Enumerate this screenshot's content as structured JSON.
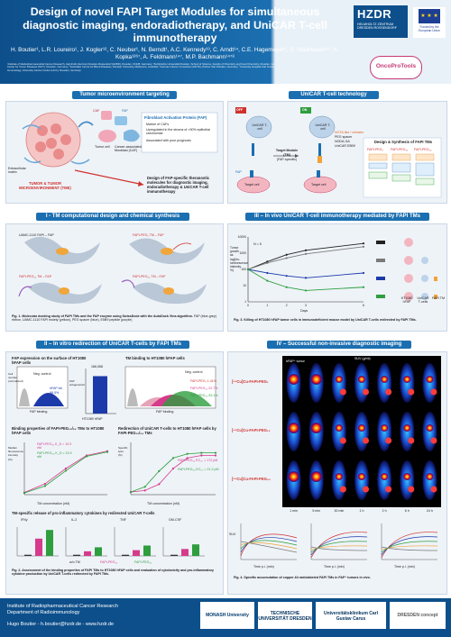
{
  "header": {
    "title": "Design of novel FAPI Target Modules for simultaneous diagnostic imaging, endoradiotherapy, and UniCAR T-cell immunotherapy",
    "authors": "H. Boutier¹, L.R. Loureiro¹, J. Kogler¹², C. Neuber¹, N. Berndt¹, A.C. Kennedy¹³, C. Arndt¹⁴, C.E. Hagemeyer⁵, S. Stadlbauer¹²⁷, K. Kopka¹²⁶⁷, A. Feldmann¹⁴⁷, M.P. Bachmann¹⁴⁷⁸",
    "affiliations": "¹Institute of Radiopharmaceutical Cancer Research, Helmholtz-Zentrum Dresden-Rossendorf (HZDR), Dresden, 01328, Germany; ²Technische Universität Dresden, School of Science, Faculty of Chemistry and Food Chemistry, Dresden, Germany; ³Monash University, Melbourne, Australia; ⁴National Center for Tumor Diseases (NCT), Dresden, Germany; ⁵Australian Centre for Blood Diseases, Monash University, Melbourne, Australia; ⁶German Cancer Consortium (DKTK), Partner Site Dresden, Germany; ⁷University Hospital Carl Gustav Carus, Technische Universität Dresden, Germany; ⁸Tumor Immunology, University Cancer Center (UCC), Dresden, Germany"
  },
  "logos": {
    "hzdr_big": "HZDR",
    "hzdr_small": "HELMHOLTZ ZENTRUM DRESDEN ROSSENDORF",
    "eu_stars": "★ ★ ★",
    "eu_text": "Funded by the European Union",
    "onco": "OncoProTools"
  },
  "sections": {
    "tme": "Tumor microenvironment targeting",
    "unicar": "UniCAR T-cell technology",
    "s1": "I - TM computational design and chemical synthesis",
    "s3": "III – In vivo UniCAR T-cell immunotherapy mediated by FAPI TMs",
    "s2": "II – In vitro redirection of UniCAR T-cells by FAPI TMs",
    "s4": "IV – Successful non-invasive diagnostic imaging"
  },
  "tme_panel": {
    "caf": "CAF",
    "fap": "FAP",
    "tumor_cell": "Tumor cell",
    "caf_full": "Cancer-associated fibroblast (CAF)",
    "stroma": "Extracellular matrix",
    "fap_title": "Fibroblast Activation Protein (FAP)",
    "fap_b1": "Marker of CAFs",
    "fap_b2": "Upregulated in the stroma of >90% epithelial carcinomas",
    "fap_b3": "Associated with poor prognosis",
    "tme_label": "TUMOR & TUMOR MICROENVIRONMENT (TME)",
    "design": "Design of FAP-specific theranostic molecules for diagnostic imaging, endoradiotherapy & UniCAR T-cell immunotherapy"
  },
  "unicar_panel": {
    "off": "OFF",
    "on": "ON",
    "tcell": "UniCAR T-cell",
    "tm": "Target Module (TM)",
    "tm_sub": "(FAP-specific)",
    "target_cell": "Target cell",
    "fap": "FAP",
    "design_title": "Design & Synthesis of FAPI TMs",
    "tm1": "FAPI-PEG₁",
    "tm2": "FAPI-PEG₁₂",
    "tm3": "FAPI-PEG₂₄",
    "legend1": "NOTA-like / chelator",
    "legend2": "PEG spacer",
    "legend3": "NODA-GA",
    "legend4": "UniCAR E5B9"
  },
  "s1_panel": {
    "img1": "UAMC-1110 FAPI – FAP",
    "img2": "FAPI-PEG₁ TM – FAP",
    "img3": "FAPI-PEG₁₂ TM – FAP",
    "img4": "FAPI-PEG₂₄ TM – FAP",
    "caption_bold": "Fig. 1. Molecular docking study of FAPI TMs and the FAP enzyme using SwissDock with the AutoDock Vina algorithm.",
    "caption": "FAP (blue-grey) ribbon, UAMC-1110 FAPI moiety (yellow), PEG spacer (blue), E5B9 peptide (purple)"
  },
  "s3_panel": {
    "n": "N = 5",
    "ylabel": "Tumor growth as log(bio-luminescence intensity %)",
    "xlabel": "Days",
    "legend1": "HT1080 hFAP",
    "legend2": "UniCAR T-cells",
    "legend3": "FAPI TM",
    "caption_bold": "Fig. 3. Killing of HT1080 hFAP tumor cells in immunodeficient mouse model by UniCAR T-cells redirected by FAPI TMs."
  },
  "s2_panel": {
    "t1": "FAP expression on the surface of HT1080 hFAP cells",
    "t2": "TM binding to HT1080 hFAP cells",
    "neg": "Neg. control",
    "hfap": "hFAP Ab",
    "hfap_val": "98.5%",
    "fap_binding": "FAP binding",
    "cell_number": "Cell number (normalized)",
    "bar_label": "HT1080 hFAP",
    "bar_val": "166,068",
    "bar_ylabel": "FAP antigens/cell",
    "neg2": "Neg. control",
    "tm1": "FAPI-PEG₁ 1.41%",
    "tm2": "FAPI-PEG₁₂ 22.7%",
    "tm3": "FAPI-PEG₂₄ 53.1%",
    "bp_title": "Binding properties of FAPI-PEG₁₂/₂₄ TMs to HT1080 hFAP cells",
    "kd1": "FAPI-PEG₁₂ K_D = 10.9 nM",
    "kd2": "FAPI-PEG₂₄ K_D = 13.9 nM",
    "bp_ylabel": "Median fluorescence intensity (%)",
    "bp_xlabel": "TM concentration (nM)",
    "rd_title": "Redirection of UniCAR T-cells to HT1080 hFAP cells by FAPI-PEG₁₂/₂₄ TMs",
    "ec1": "FAPI-PEG₁₂ EC₅₀ = 172 pM",
    "ec2": "FAPI-PEG₂₄ EC₅₀ = 21.2 pM",
    "rd_ylabel": "Specific lysis (%)",
    "rd_xlabel": "TM concentration (nM)",
    "cyto_title": "TM-specific release of pro-inflammatory cytokines by redirected UniCAR T-cells",
    "c1": "IFNγ",
    "c2": "IL-2",
    "c3": "TNF",
    "c4": "GM-CSF",
    "leg1": "w/o TM",
    "leg2": "FAPI-PEG₁₂",
    "leg3": "FAPI-PEG₂₄",
    "caption_bold": "Fig. 2. Assessment of the binding properties of FAPI TMs to HT1080 hFAP cells and evaluation of cytotoxicity and pro-inflammatory cytokine production by UniCAR T-cells redirected by FAPI TMs."
  },
  "s4_panel": {
    "suv": "SUV (g/ml)",
    "tracer1": "[⁶⁴Cu]Cu-FAPI-PEG₁",
    "tracer2": "[⁶⁴Cu]Cu-FAPI-PEG₁₂",
    "tracer3": "[⁶⁴Cu]Cu-FAPI-PEG₂₄",
    "tumor_label": "hFAP⁺ tumor",
    "times": [
      "1 min",
      "5 min",
      "30 min",
      "1 h",
      "2 h",
      "6 h",
      "24 h"
    ],
    "g1_ylabel": "SUV",
    "g_xlabel": "Time p.i. (min)",
    "caption_bold": "Fig. 4. Specific accumulation of copper-64 radiolabeled FAPI TMs in FAP⁺ tumors in vivo."
  },
  "footer": {
    "line1": "Institute of Radiopharmaceutical Cancer Research",
    "line2": "Department of Radioimmunology",
    "line3": "Hugo Boutier - h.boutier@hzdr.de - www.hzdr.de",
    "logo1": "MONASH University",
    "logo2": "TECHNISCHE UNIVERSITÄT DRESDEN",
    "logo3": "Universitätsklinikum Carl Gustav Carus",
    "logo4": "DRESDEN concept"
  },
  "chart_data": [
    {
      "type": "line",
      "title": "",
      "xlabel": "Days",
      "ylabel": "Tumor growth as log(bio-luminescence intensity %)",
      "x": [
        0,
        1,
        2,
        3,
        6
      ],
      "ylim": [
        1,
        10000
      ],
      "y_scale": "log",
      "series": [
        {
          "values": [
            100,
            300,
            800,
            1500,
            4000
          ],
          "color": "#222222"
        },
        {
          "values": [
            100,
            250,
            500,
            900,
            2500
          ],
          "color": "#7a7a7a"
        },
        {
          "values": [
            100,
            60,
            40,
            30,
            60
          ],
          "color": "#1c3aa9"
        },
        {
          "values": [
            100,
            20,
            8,
            5,
            8
          ],
          "color": "#2e9e3e"
        }
      ]
    },
    {
      "type": "bar",
      "categories": [
        "HT1080 hFAP"
      ],
      "values": [
        166068
      ],
      "ylabel": "FAP antigens/cell",
      "ylim": [
        0,
        200000
      ]
    },
    {
      "type": "scatter",
      "title": "Binding properties of FAPI-PEG₁₂/₂₄ TMs to HT1080 hFAP cells",
      "xlabel": "TM concentration (nM)",
      "ylabel": "Median fluorescence intensity (%)",
      "x_scale": "log",
      "x": [
        0.1,
        1,
        10,
        100,
        1000
      ],
      "ylim": [
        0,
        120
      ],
      "series": [
        {
          "values": [
            5,
            25,
            60,
            90,
            100
          ],
          "color": "#d63a8c"
        },
        {
          "values": [
            4,
            20,
            55,
            88,
            98
          ],
          "color": "#2e9e3e"
        }
      ]
    },
    {
      "type": "line",
      "title": "Redirection of UniCAR T-cells to HT1080 hFAP cells by FAPI-PEG₁₂/₂₄ TMs",
      "xlabel": "TM concentration (nM)",
      "ylabel": "Specific lysis (%)",
      "x_scale": "log",
      "x": [
        1e-05,
        0.0001,
        0.001,
        0.01,
        0.1,
        1,
        10
      ],
      "ylim": [
        0,
        100
      ],
      "series": [
        {
          "values": [
            5,
            8,
            20,
            50,
            70,
            75,
            75
          ],
          "color": "#d63a8c"
        },
        {
          "values": [
            5,
            15,
            45,
            70,
            78,
            80,
            80
          ],
          "color": "#2e9e3e"
        }
      ]
    },
    {
      "type": "bar",
      "title": "TM-specific release of pro-inflammatory cytokines by redirected UniCAR T-cells",
      "categories": [
        "IFNγ",
        "IL-2",
        "TNF",
        "GM-CSF"
      ],
      "series": [
        {
          "name": "w/o TM",
          "values": [
            2,
            2,
            2,
            2
          ],
          "color": "#333333"
        },
        {
          "name": "FAPI-PEG₁₂",
          "values": [
            30,
            8,
            10,
            12
          ],
          "color": "#d63a8c"
        },
        {
          "name": "FAPI-PEG₂₄",
          "values": [
            45,
            15,
            18,
            20
          ],
          "color": "#2e9e3e"
        }
      ]
    }
  ]
}
